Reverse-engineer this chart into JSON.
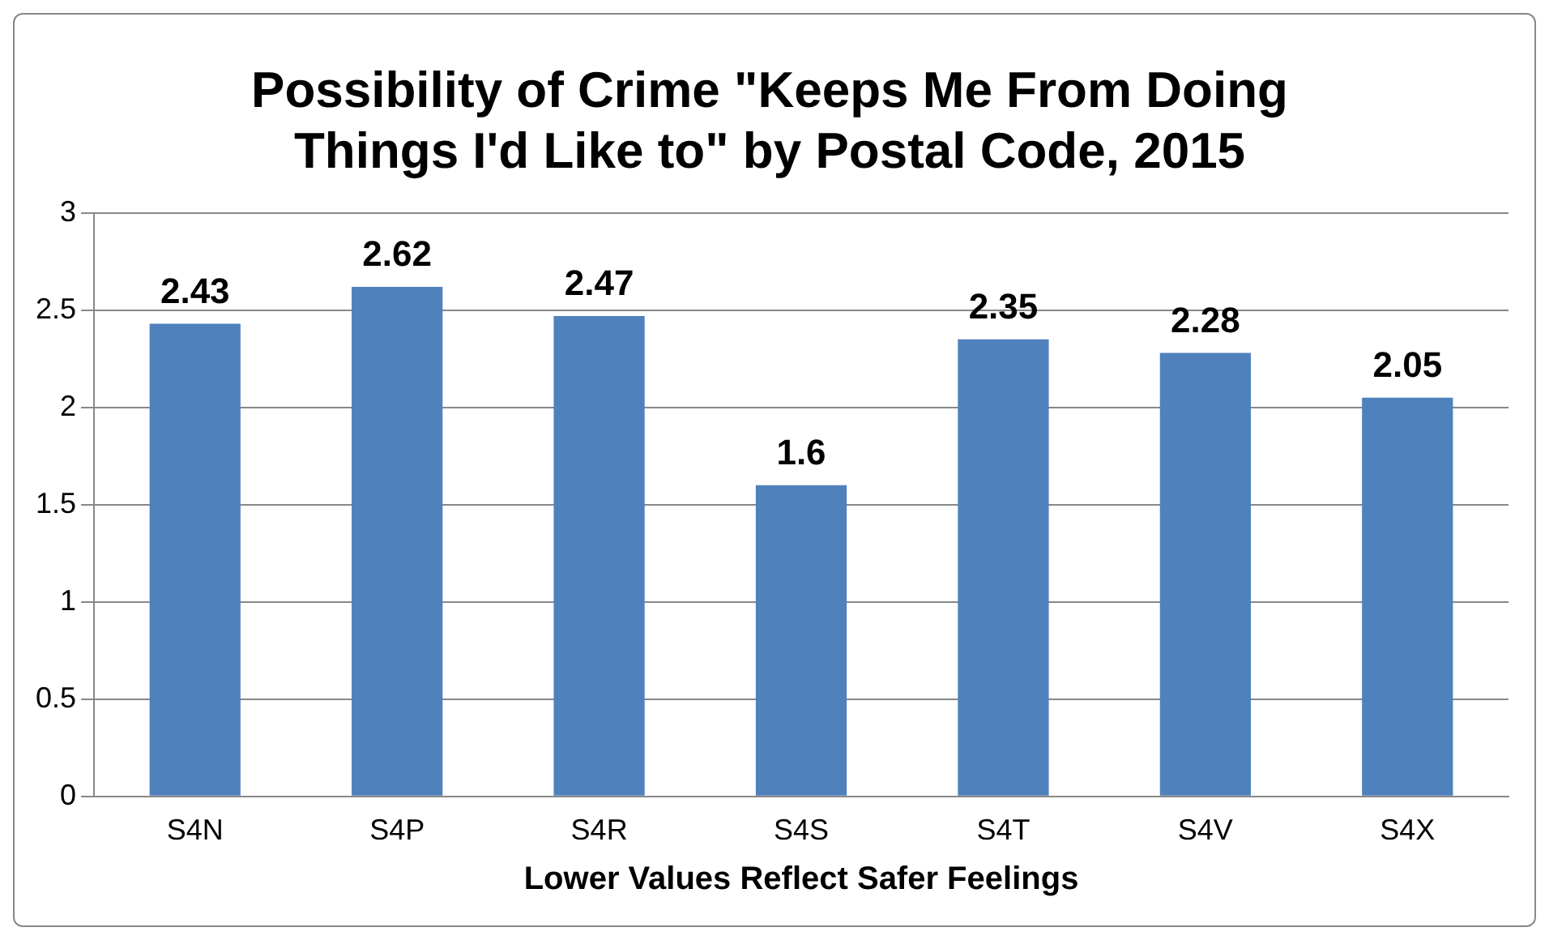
{
  "chart_data": {
    "type": "bar",
    "title": "Possibility of Crime \"Keeps Me From Doing Things I'd Like to\" by Postal Code, 2015",
    "xlabel": "Lower Values Reflect Safer Feelings",
    "categories": [
      "S4N",
      "S4P",
      "S4R",
      "S4S",
      "S4T",
      "S4V",
      "S4X"
    ],
    "values": [
      2.43,
      2.62,
      2.47,
      1.6,
      2.35,
      2.28,
      2.05
    ],
    "color": "#4f81bd",
    "ylim": [
      0,
      3
    ],
    "yticks": [
      0,
      0.5,
      1,
      1.5,
      2,
      2.5,
      3
    ],
    "grid": "y",
    "data_labels": true,
    "legend": false
  }
}
